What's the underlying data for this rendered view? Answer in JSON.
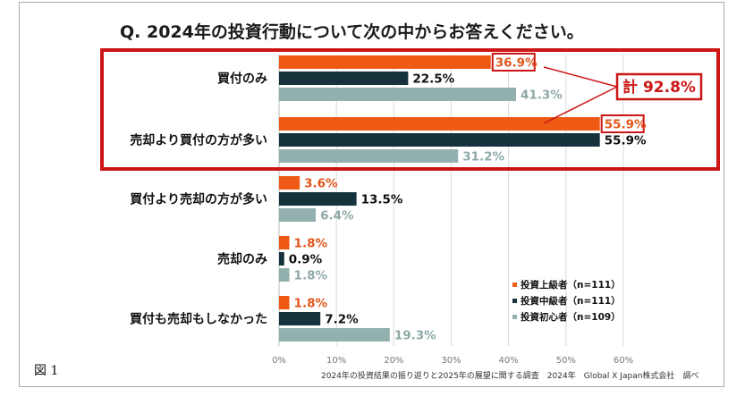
{
  "chart_data": {
    "type": "bar",
    "orientation": "horizontal",
    "title": "Q. 2024年の投資行動について次の中からお答えください。",
    "categories": [
      "買付のみ",
      "売却より買付の方が多い",
      "買付より売却の方が多い",
      "売却のみ",
      "買付も売却もしなかった"
    ],
    "series": [
      {
        "name": "投資上級者（n=111）",
        "color": "#ee5a14",
        "labelColor": "#e2561a",
        "values": [
          36.9,
          55.9,
          3.6,
          1.8,
          1.8
        ]
      },
      {
        "name": "投資中級者（n=111）",
        "color": "#15323d",
        "labelColor": "#111111",
        "values": [
          22.5,
          55.9,
          13.5,
          0.9,
          7.2
        ]
      },
      {
        "name": "投資初心者（n=109）",
        "color": "#92b0ae",
        "labelColor": "#8ea9a7",
        "values": [
          41.3,
          31.2,
          6.4,
          1.8,
          19.3
        ]
      }
    ],
    "xlim": [
      0,
      60
    ],
    "xticks": [
      0,
      10,
      20,
      30,
      40,
      50,
      60
    ],
    "tick_suffix": "%",
    "value_suffix": "%",
    "grid": true,
    "legend_position": "bottom-right",
    "highlighted_labels": [
      [
        0,
        0
      ],
      [
        1,
        0
      ]
    ],
    "annotation": "計 92.8%",
    "source": "2024年の投資結果の振り返りと2025年の展望に関する調査　2024年　Global X Japan株式会社　調べ",
    "figure_label": "図 1"
  },
  "colors": {
    "highlight": "#cc1616"
  }
}
